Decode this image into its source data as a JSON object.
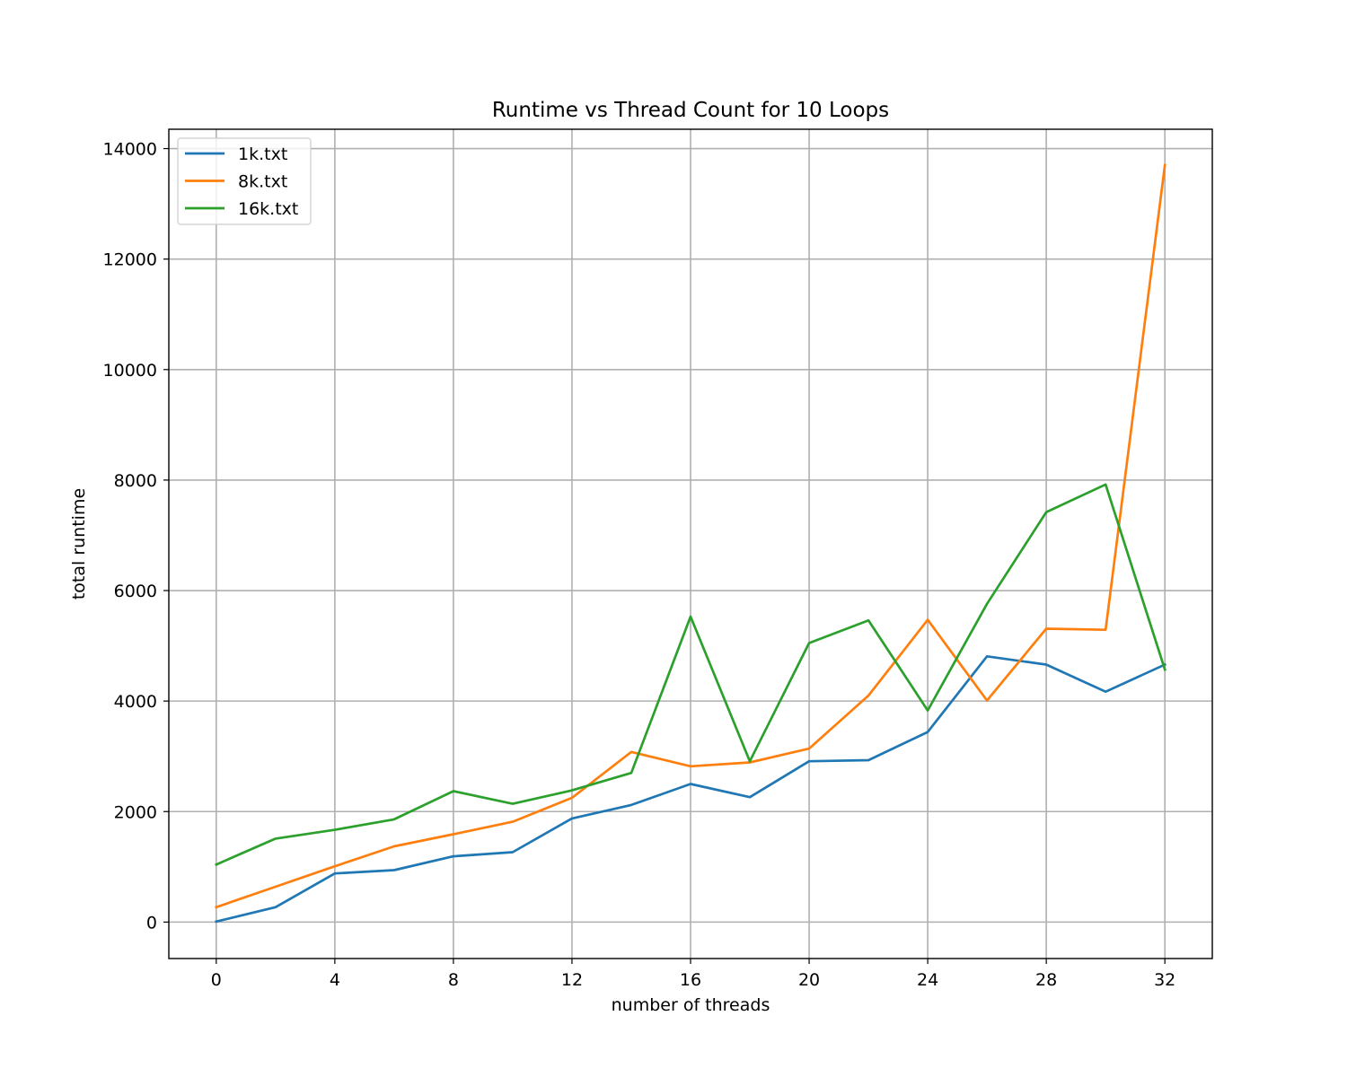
{
  "chart_data": {
    "type": "line",
    "title": "Runtime vs Thread Count for 10 Loops",
    "xlabel": "number of threads",
    "ylabel": "total runtime",
    "xlim": [
      -1.6,
      33.6
    ],
    "ylim": [
      -660,
      14350
    ],
    "xticks": [
      0,
      4,
      8,
      12,
      16,
      20,
      24,
      28,
      32
    ],
    "yticks": [
      0,
      2000,
      4000,
      6000,
      8000,
      10000,
      12000,
      14000
    ],
    "grid": true,
    "legend_position": "top-left",
    "x": [
      0,
      2,
      4,
      6,
      8,
      10,
      12,
      14,
      16,
      18,
      20,
      22,
      24,
      26,
      28,
      30,
      32
    ],
    "series": [
      {
        "name": "1k.txt",
        "color": "#1f77b4",
        "values": [
          10,
          270,
          880,
          940,
          1190,
          1265,
          1875,
          2120,
          2500,
          2260,
          2910,
          2930,
          3440,
          4810,
          4660,
          4170,
          4660
        ]
      },
      {
        "name": "8k.txt",
        "color": "#ff7f0e",
        "values": [
          270,
          640,
          1010,
          1370,
          1590,
          1815,
          2250,
          3080,
          2820,
          2890,
          3140,
          4100,
          5470,
          4010,
          5310,
          5290,
          13700
        ]
      },
      {
        "name": "16k.txt",
        "color": "#2ca02c",
        "values": [
          1040,
          1510,
          1670,
          1860,
          2370,
          2140,
          2385,
          2700,
          5530,
          2910,
          5050,
          5460,
          3830,
          5760,
          7420,
          7920,
          4570
        ]
      }
    ]
  }
}
